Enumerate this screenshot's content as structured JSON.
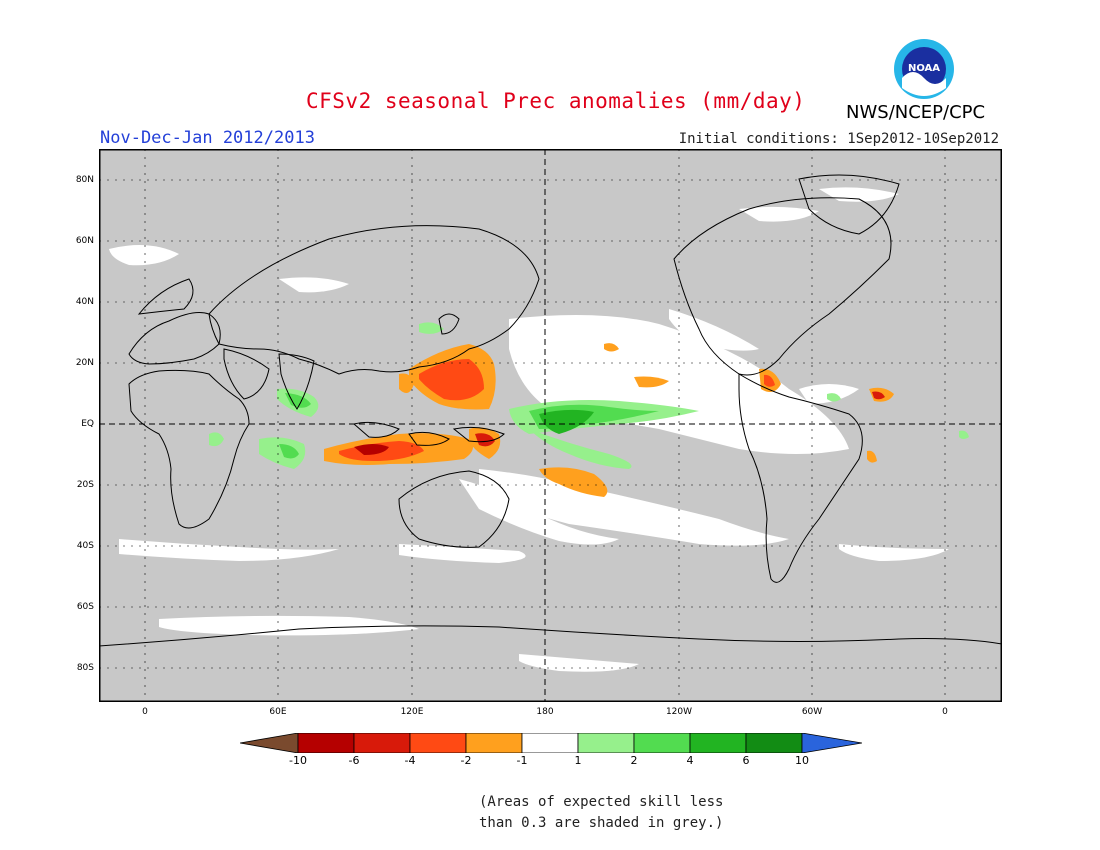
{
  "header": {
    "title": "CFSv2 seasonal Prec anomalies (mm/day)",
    "season": "Nov-Dec-Jan 2012/2013",
    "initial_conditions": "Initial conditions: 1Sep2012-10Sep2012",
    "agency": "NWS/NCEP/CPC",
    "logo_text": "NOAA"
  },
  "map": {
    "lat_labels": [
      "80N",
      "60N",
      "40N",
      "20N",
      "EQ",
      "20S",
      "40S",
      "60S",
      "80S"
    ],
    "lon_labels": [
      "0",
      "60E",
      "120E",
      "180",
      "120W",
      "60W",
      "0"
    ]
  },
  "colorbar": {
    "ticks": [
      "-10",
      "-6",
      "-4",
      "-2",
      "-1",
      "1",
      "2",
      "4",
      "6",
      "10"
    ],
    "colors": [
      "#7a4a2e",
      "#b50000",
      "#d81a0a",
      "#ff4a14",
      "#ffa01e",
      "#ffffff",
      "#96f08c",
      "#52dc50",
      "#22b422",
      "#128c14",
      "#2a64dc"
    ]
  },
  "colors": {
    "grey_mask": "#c8c8c8",
    "dry_strong": "#d81a0a",
    "dry_moderate": "#ff4a14",
    "dry_weak": "#ffa01e",
    "wet_weak": "#96f08c",
    "wet_moderate": "#52dc50",
    "wet_strong": "#22b422"
  },
  "note": {
    "line1": "(Areas of expected skill less",
    "line2": "than 0.3 are shaded in grey.)"
  }
}
